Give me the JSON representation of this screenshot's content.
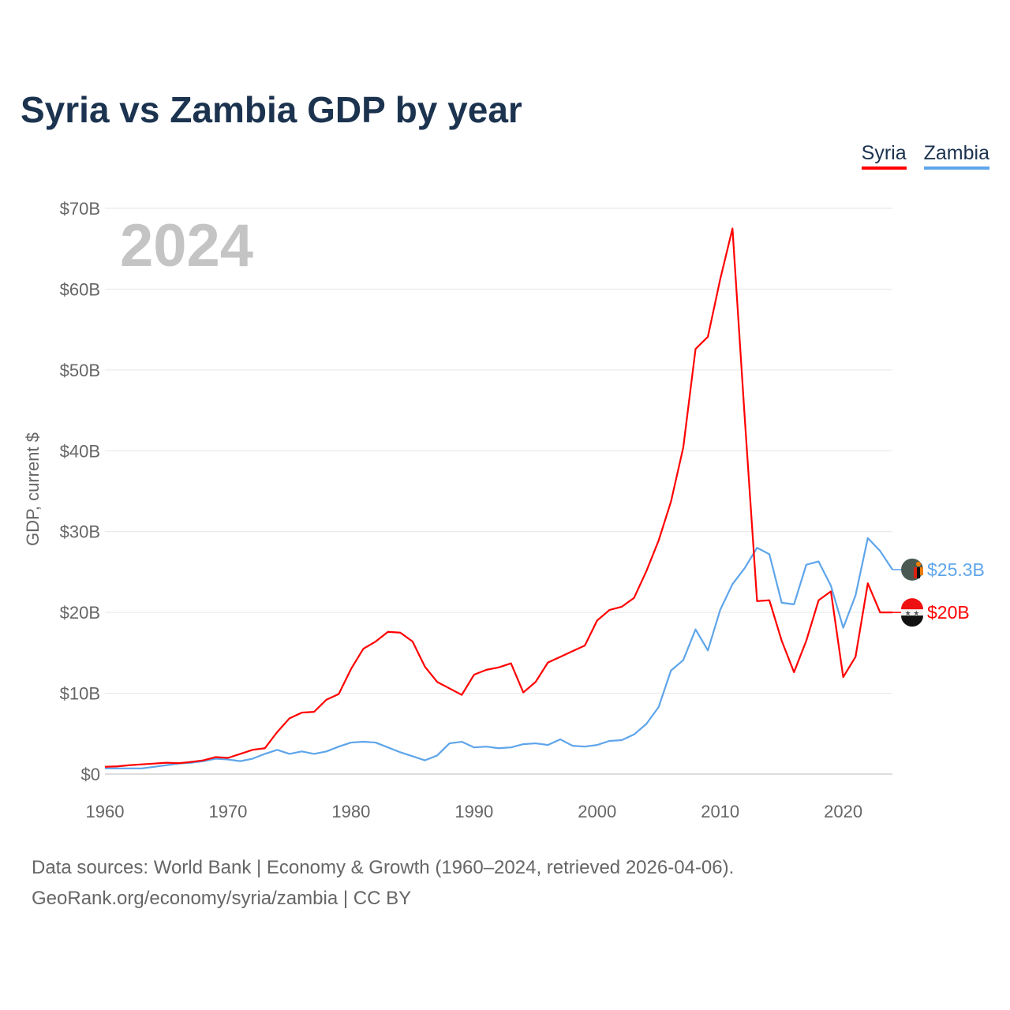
{
  "chart_data": {
    "type": "line",
    "title": "Syria vs Zambia GDP by year",
    "ylabel": "GDP, current $",
    "xlabel": "",
    "current_year": "2024",
    "xlim": [
      1960,
      2024
    ],
    "ylim": [
      0,
      70
    ],
    "x_ticks": [
      "1960",
      "1970",
      "1980",
      "1990",
      "2000",
      "2010",
      "2020"
    ],
    "y_ticks": [
      "$0",
      "$10B",
      "$20B",
      "$30B",
      "$40B",
      "$50B",
      "$60B",
      "$70B"
    ],
    "grid": true,
    "legend_position": "top-right",
    "x": [
      1960,
      1961,
      1962,
      1963,
      1964,
      1965,
      1966,
      1967,
      1968,
      1969,
      1970,
      1971,
      1972,
      1973,
      1974,
      1975,
      1976,
      1977,
      1978,
      1979,
      1980,
      1981,
      1982,
      1983,
      1984,
      1985,
      1986,
      1987,
      1988,
      1989,
      1990,
      1991,
      1992,
      1993,
      1994,
      1995,
      1996,
      1997,
      1998,
      1999,
      2000,
      2001,
      2002,
      2003,
      2004,
      2005,
      2006,
      2007,
      2008,
      2009,
      2010,
      2011,
      2012,
      2013,
      2014,
      2015,
      2016,
      2017,
      2018,
      2019,
      2020,
      2021,
      2022,
      2023,
      2024
    ],
    "series": [
      {
        "name": "Syria",
        "color": "#ff0000",
        "end_label": "$20B",
        "values": [
          0.9,
          0.95,
          1.1,
          1.2,
          1.3,
          1.4,
          1.35,
          1.5,
          1.7,
          2.1,
          2.0,
          2.5,
          3.0,
          3.2,
          5.2,
          6.9,
          7.6,
          7.7,
          9.2,
          9.9,
          13.0,
          15.5,
          16.4,
          17.6,
          17.5,
          16.4,
          13.3,
          11.4,
          10.6,
          9.8,
          12.3,
          12.9,
          13.2,
          13.7,
          10.1,
          11.4,
          13.8,
          14.5,
          15.2,
          15.9,
          19.0,
          20.3,
          20.7,
          21.8,
          25.1,
          28.9,
          33.7,
          40.4,
          52.6,
          54.1,
          61.2,
          67.5,
          44.0,
          21.4,
          21.5,
          16.5,
          12.6,
          16.5,
          21.5,
          22.6,
          12.0,
          14.5,
          23.6,
          20.0,
          20.0
        ]
      },
      {
        "name": "Zambia",
        "color": "#5ea5ea",
        "end_label": "$25.3B",
        "values": [
          0.7,
          0.7,
          0.7,
          0.7,
          0.9,
          1.1,
          1.3,
          1.4,
          1.6,
          1.9,
          1.8,
          1.6,
          1.9,
          2.5,
          3.0,
          2.5,
          2.8,
          2.5,
          2.8,
          3.4,
          3.9,
          4.0,
          3.9,
          3.3,
          2.7,
          2.2,
          1.7,
          2.3,
          3.8,
          4.0,
          3.3,
          3.4,
          3.2,
          3.3,
          3.7,
          3.8,
          3.6,
          4.3,
          3.5,
          3.4,
          3.6,
          4.1,
          4.2,
          4.9,
          6.2,
          8.3,
          12.8,
          14.1,
          17.9,
          15.3,
          20.3,
          23.5,
          25.5,
          28.0,
          27.2,
          21.2,
          21.0,
          25.9,
          26.3,
          23.3,
          18.1,
          22.1,
          29.2,
          27.6,
          25.3
        ]
      }
    ]
  },
  "footer": {
    "line1": "Data sources: World Bank | Economy & Growth (1960–2024, retrieved 2026-04-06).",
    "line2": "GeoRank.org/economy/syria/zambia | CC BY"
  }
}
